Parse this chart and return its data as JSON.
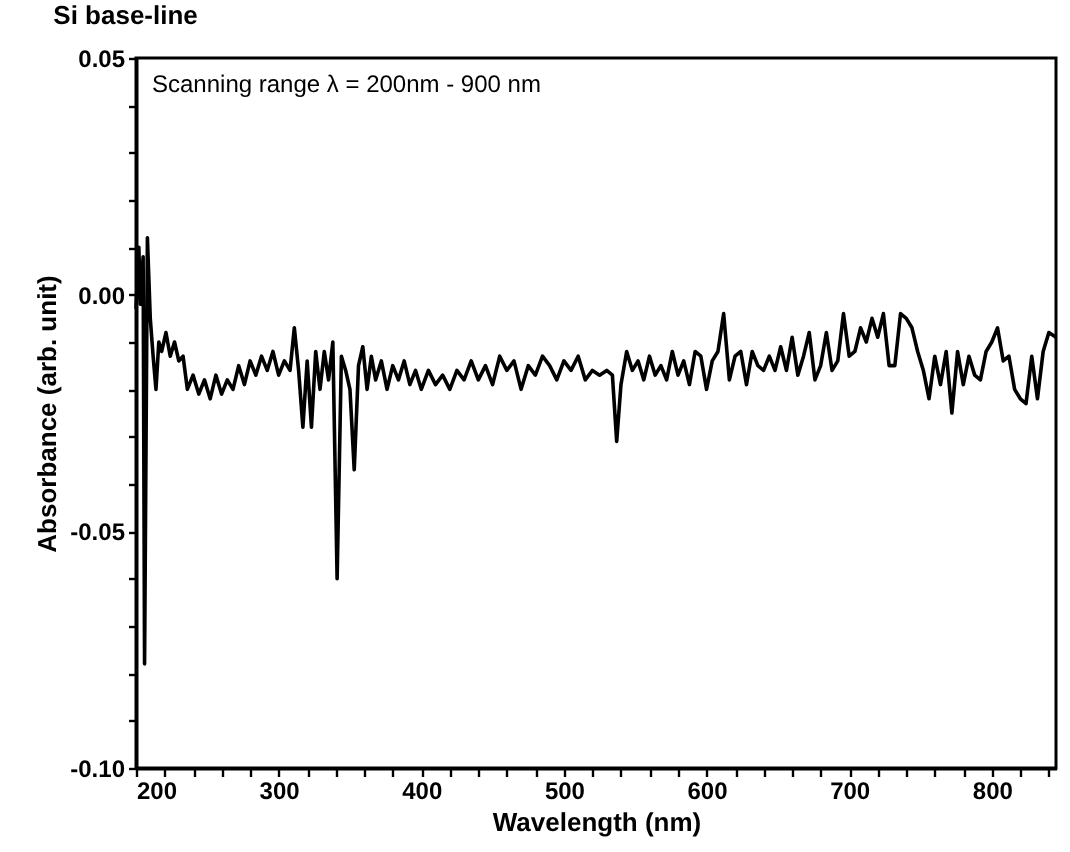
{
  "chart_data": {
    "type": "line",
    "title": "Si base-line",
    "xlabel": "Wavelength (nm)",
    "ylabel": "Absorbance (arb. unit)",
    "annotations": [
      "Scanning range λ = 200nm - 900 nm"
    ],
    "xlim": [
      200,
      845
    ],
    "ylim": [
      -0.1,
      0.05
    ],
    "xticks": [
      200,
      {
        "value": 220,
        "label": null
      },
      {
        "value": 240,
        "label": null
      },
      {
        "value": 260,
        "label": null
      },
      {
        "value": 280,
        "label": null
      },
      300,
      {
        "value": 320,
        "label": null
      },
      {
        "value": 340,
        "label": null
      },
      {
        "value": 360,
        "label": null
      },
      {
        "value": 380,
        "label": null
      },
      400,
      {
        "value": 420,
        "label": null
      },
      {
        "value": 440,
        "label": null
      },
      {
        "value": 460,
        "label": null
      },
      {
        "value": 480,
        "label": null
      },
      500,
      {
        "value": 520,
        "label": null
      },
      {
        "value": 540,
        "label": null
      },
      {
        "value": 560,
        "label": null
      },
      {
        "value": 580,
        "label": null
      },
      600,
      {
        "value": 620,
        "label": null
      },
      {
        "value": 640,
        "label": null
      },
      {
        "value": 660,
        "label": null
      },
      {
        "value": 680,
        "label": null
      },
      700,
      {
        "value": 720,
        "label": null
      },
      {
        "value": 740,
        "label": null
      },
      {
        "value": 760,
        "label": null
      },
      {
        "value": 780,
        "label": null
      },
      800,
      {
        "value": 820,
        "label": null
      },
      {
        "value": 840,
        "label": null
      }
    ],
    "yticks": [
      {
        "value": 0.05,
        "label": "0.05"
      },
      {
        "value": 0.04,
        "label": null
      },
      {
        "value": 0.03,
        "label": null
      },
      {
        "value": 0.02,
        "label": null
      },
      {
        "value": 0.01,
        "label": null
      },
      {
        "value": 0,
        "label": "0.00"
      },
      {
        "value": -0.01,
        "label": null
      },
      {
        "value": -0.02,
        "label": null
      },
      {
        "value": -0.03,
        "label": null
      },
      {
        "value": -0.04,
        "label": null
      },
      {
        "value": -0.05,
        "label": "-0.05"
      },
      {
        "value": -0.06,
        "label": null
      },
      {
        "value": -0.07,
        "label": null
      },
      {
        "value": -0.08,
        "label": null
      },
      {
        "value": -0.09,
        "label": null
      },
      {
        "value": -0.1,
        "label": "-0.10"
      }
    ],
    "grid": false,
    "marker": "none",
    "line_style": "solid",
    "series": [
      {
        "color": "#000000",
        "x": [
          200,
          202,
          203,
          205,
          206,
          208,
          210,
          212,
          214,
          216,
          218,
          221,
          224,
          227,
          230,
          233,
          236,
          240,
          244,
          248,
          252,
          256,
          260,
          264,
          268,
          272,
          276,
          280,
          284,
          288,
          292,
          296,
          300,
          304,
          308,
          311,
          314,
          317,
          320,
          323,
          326,
          329,
          332,
          335,
          338,
          341,
          344,
          347,
          350,
          353,
          356,
          359,
          362,
          365,
          368,
          372,
          376,
          380,
          384,
          388,
          392,
          396,
          400,
          405,
          410,
          415,
          420,
          425,
          430,
          435,
          440,
          445,
          450,
          455,
          460,
          465,
          470,
          475,
          480,
          485,
          490,
          495,
          500,
          505,
          510,
          515,
          520,
          525,
          530,
          534,
          537,
          540,
          544,
          548,
          552,
          556,
          560,
          564,
          568,
          572,
          576,
          580,
          584,
          588,
          592,
          596,
          600,
          604,
          608,
          612,
          616,
          620,
          624,
          628,
          632,
          636,
          640,
          644,
          648,
          652,
          656,
          660,
          664,
          668,
          672,
          676,
          680,
          684,
          688,
          692,
          696,
          700,
          704,
          708,
          712,
          716,
          720,
          724,
          728,
          732,
          736,
          740,
          744,
          748,
          752,
          756,
          760,
          764,
          768,
          772,
          776,
          780,
          784,
          788,
          792,
          796,
          800,
          804,
          808,
          812,
          816,
          820,
          824,
          828,
          832,
          836,
          840,
          845
        ],
        "values": [
          -0.003,
          0.01,
          -0.002,
          0.008,
          -0.078,
          0.012,
          -0.005,
          -0.013,
          -0.02,
          -0.01,
          -0.012,
          -0.008,
          -0.013,
          -0.01,
          -0.014,
          -0.013,
          -0.02,
          -0.017,
          -0.021,
          -0.018,
          -0.022,
          -0.017,
          -0.021,
          -0.018,
          -0.02,
          -0.015,
          -0.019,
          -0.014,
          -0.017,
          -0.013,
          -0.016,
          -0.012,
          -0.017,
          -0.014,
          -0.016,
          -0.007,
          -0.016,
          -0.028,
          -0.014,
          -0.028,
          -0.012,
          -0.02,
          -0.012,
          -0.018,
          -0.01,
          -0.06,
          -0.013,
          -0.016,
          -0.02,
          -0.037,
          -0.015,
          -0.011,
          -0.02,
          -0.013,
          -0.018,
          -0.014,
          -0.02,
          -0.015,
          -0.018,
          -0.014,
          -0.019,
          -0.016,
          -0.02,
          -0.016,
          -0.019,
          -0.017,
          -0.02,
          -0.016,
          -0.018,
          -0.014,
          -0.018,
          -0.015,
          -0.019,
          -0.013,
          -0.016,
          -0.014,
          -0.02,
          -0.015,
          -0.017,
          -0.013,
          -0.015,
          -0.018,
          -0.014,
          -0.016,
          -0.013,
          -0.018,
          -0.016,
          -0.017,
          -0.016,
          -0.017,
          -0.031,
          -0.019,
          -0.012,
          -0.016,
          -0.014,
          -0.018,
          -0.013,
          -0.017,
          -0.015,
          -0.018,
          -0.012,
          -0.017,
          -0.014,
          -0.019,
          -0.012,
          -0.013,
          -0.02,
          -0.014,
          -0.012,
          -0.004,
          -0.018,
          -0.013,
          -0.012,
          -0.019,
          -0.012,
          -0.015,
          -0.016,
          -0.013,
          -0.016,
          -0.011,
          -0.016,
          -0.009,
          -0.017,
          -0.013,
          -0.008,
          -0.018,
          -0.015,
          -0.008,
          -0.016,
          -0.014,
          -0.004,
          -0.013,
          -0.012,
          -0.007,
          -0.01,
          -0.005,
          -0.009,
          -0.004,
          -0.015,
          -0.015,
          -0.004,
          -0.005,
          -0.007,
          -0.012,
          -0.016,
          -0.022,
          -0.013,
          -0.019,
          -0.012,
          -0.025,
          -0.012,
          -0.019,
          -0.013,
          -0.017,
          -0.018,
          -0.012,
          -0.01,
          -0.007,
          -0.014,
          -0.013,
          -0.02,
          -0.022,
          -0.023,
          -0.013,
          -0.022,
          -0.012,
          -0.008,
          -0.009
        ]
      }
    ]
  }
}
